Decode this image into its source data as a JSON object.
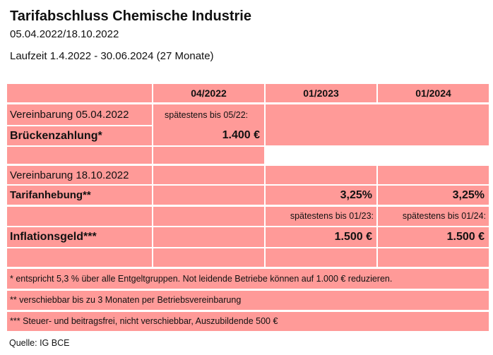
{
  "header": {
    "title": "Tarifabschluss Chemische Industrie",
    "dates": "05.04.2022/18.10.2022",
    "term": "Laufzeit 1.4.2022 - 30.06.2024 (27 Monate)"
  },
  "table": {
    "columns": [
      "04/2022",
      "01/2023",
      "01/2024"
    ],
    "agreement1": "Vereinbarung 05.04.2022",
    "bridge_label": "Brückenzahlung*",
    "bridge_note": "spätestens bis 05/22:",
    "bridge_value": "1.400 €",
    "agreement2": "Vereinbarung 18.10.2022",
    "raise_label": "Tarifanhebung**",
    "raise_2023": "3,25%",
    "raise_2024": "3,25%",
    "infl_label": "Inflationsgeld***",
    "infl_note_2023": "spätestens bis 01/23:",
    "infl_value_2023": "1.500 €",
    "infl_note_2024": "spätestens bis 01/24:",
    "infl_value_2024": "1.500 €"
  },
  "notes": [
    "* entspricht 5,3 % über alle Entgeltgruppen. Not leidende Betriebe können auf 1.000 € reduzieren.",
    "** verschiebbar bis zu 3 Monaten per Betriebsvereinbarung",
    "***  Steuer- und beitragsfrei, nicht verschiebbar, Auszubildende 500 €"
  ],
  "source": "Quelle: IG BCE",
  "colors": {
    "cell_fill": "#ff9a98",
    "grid": "#ffffff"
  }
}
